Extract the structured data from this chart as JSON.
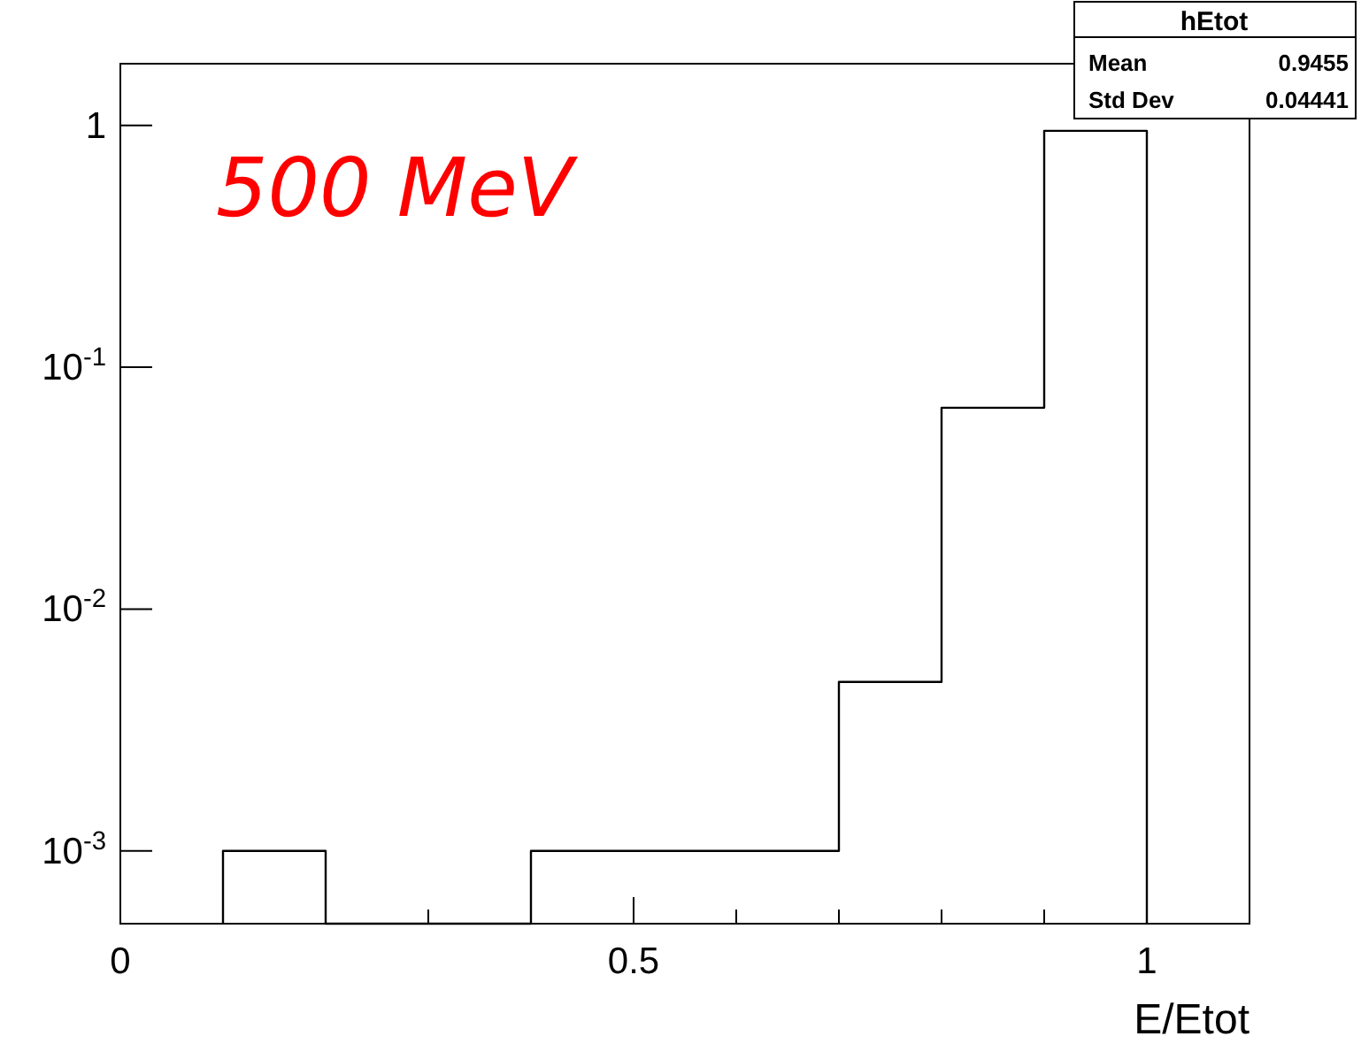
{
  "chart_data": {
    "type": "histogram",
    "xlabel": "E/Etot",
    "bins": [
      0.1,
      0.2,
      0.3,
      0.4,
      0.5,
      0.6,
      0.7,
      0.8,
      0.9,
      1.0
    ],
    "values": [
      0.001,
      null,
      null,
      0.001,
      0.001,
      0.001,
      0.005,
      0.068,
      0.95
    ],
    "color": "#000000",
    "xlim": [
      0,
      1.1
    ],
    "ylim": [
      0.0005,
      1.8
    ],
    "log": "y",
    "grid": false,
    "xticks": [
      0,
      {
        "value": 0.1,
        "label": null
      },
      {
        "value": 0.2,
        "label": null
      },
      {
        "value": 0.3,
        "label": null
      },
      {
        "value": 0.4,
        "label": null
      },
      0.5,
      {
        "value": 0.6,
        "label": null
      },
      {
        "value": 0.7,
        "label": null
      },
      {
        "value": 0.8,
        "label": null
      },
      {
        "value": 0.9,
        "label": null
      },
      1,
      {
        "value": 1.1,
        "label": null
      }
    ],
    "yticks": [
      {
        "value": 0.001,
        "label": "10$^{-3}$"
      },
      {
        "value": 0.01,
        "label": "10$^{-2}$"
      },
      {
        "value": 0.1,
        "label": "10$^{-1}$"
      },
      1
    ],
    "annotations": [
      "500 MeV",
      "hEtot",
      "Mean",
      "0.9455",
      "Std Dev",
      "0.04441"
    ]
  }
}
